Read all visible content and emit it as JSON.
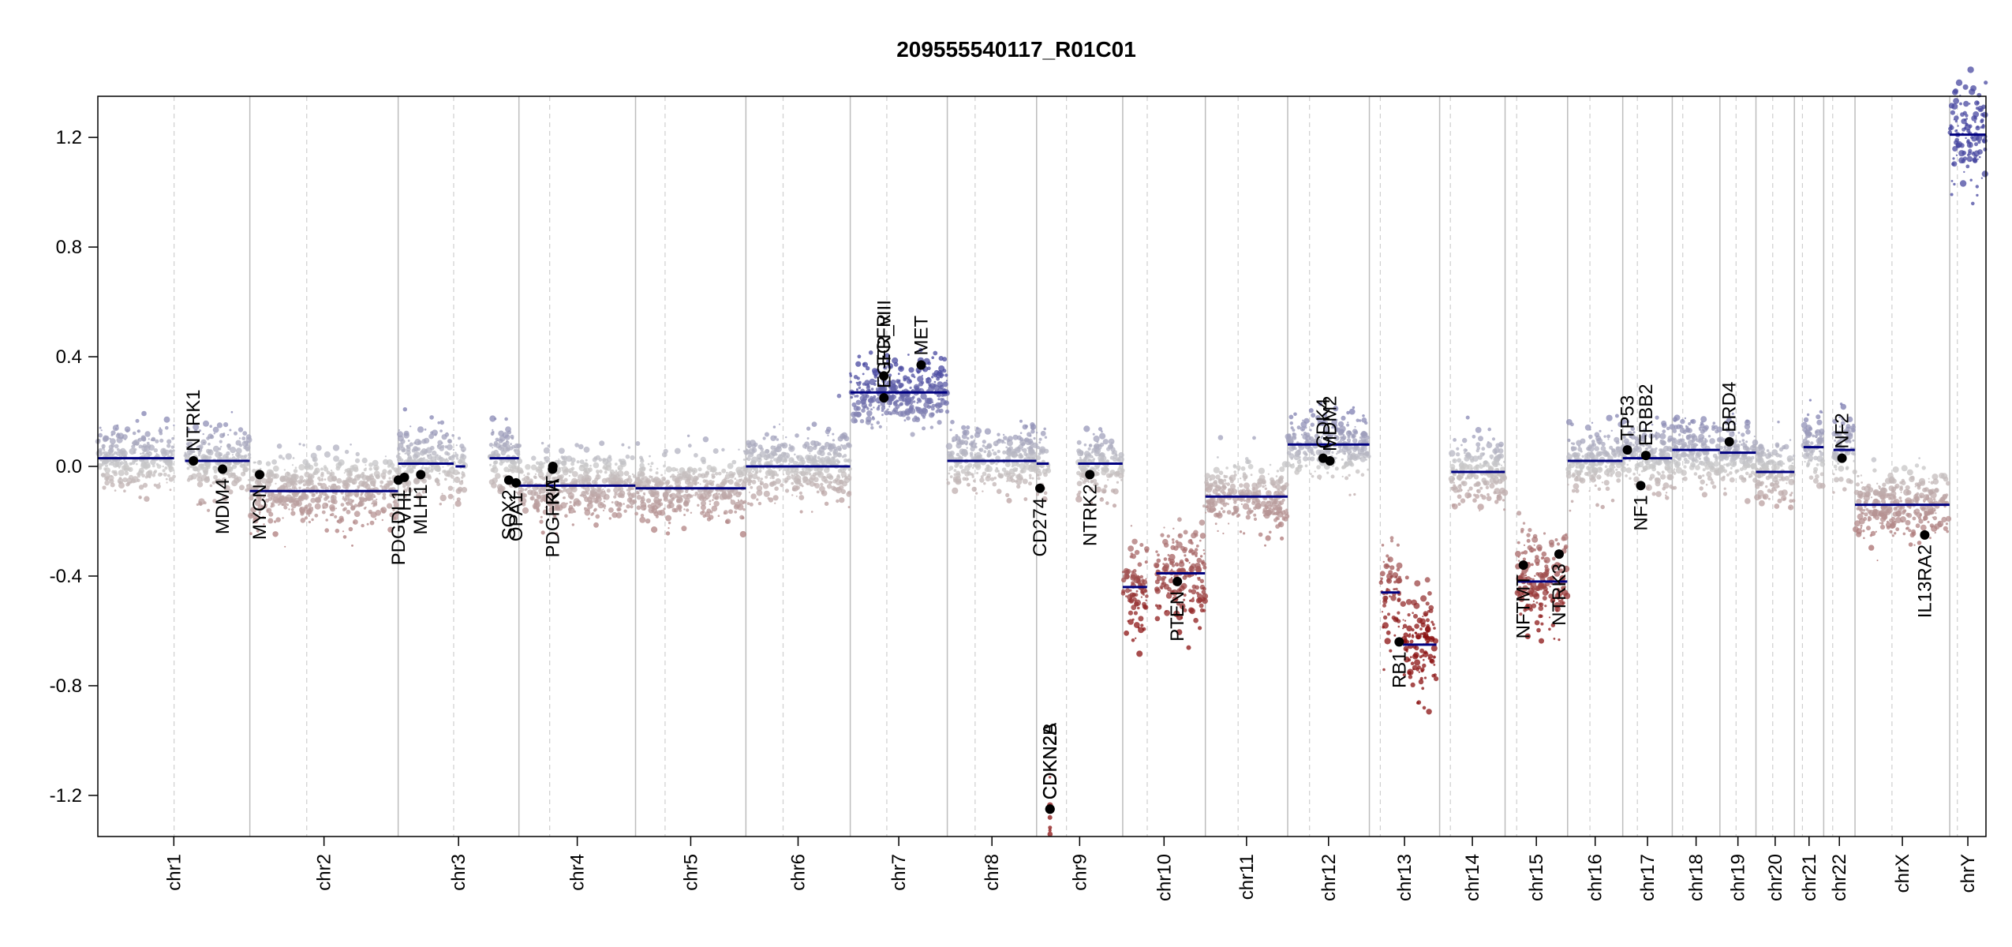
{
  "colors": {
    "gain": "#4848a0",
    "neutral": "#c8c8c8",
    "loss": "#8a1010",
    "segment": "#000080",
    "gene_point": "#000000",
    "chrom_boundary": "#bdbdbd",
    "centromere": "#cfcfcf"
  },
  "chart_data": {
    "type": "scatter",
    "title": "209555540117_R01C01",
    "xlabel": "",
    "ylabel": "",
    "ylim": [
      -1.35,
      1.35
    ],
    "y_ticks": [
      {
        "value": 1.2,
        "label": "1.2"
      },
      {
        "value": 0.8,
        "label": "0.8"
      },
      {
        "value": 0.4,
        "label": "0.4"
      },
      {
        "value": 0.0,
        "label": "0.0"
      },
      {
        "value": -0.4,
        "label": "-0.4"
      },
      {
        "value": -0.8,
        "label": "-0.8"
      },
      {
        "value": -1.2,
        "label": "-1.2"
      }
    ],
    "grid": false,
    "chromosomes": [
      {
        "name": "chr1",
        "len": 249.2,
        "cen": 125.0
      },
      {
        "name": "chr2",
        "len": 243.2,
        "cen": 93.3
      },
      {
        "name": "chr3",
        "len": 198.0,
        "cen": 91.0
      },
      {
        "name": "chr4",
        "len": 191.2,
        "cen": 50.4
      },
      {
        "name": "chr5",
        "len": 180.9,
        "cen": 48.4
      },
      {
        "name": "chr6",
        "len": 171.1,
        "cen": 61.0
      },
      {
        "name": "chr7",
        "len": 159.1,
        "cen": 59.9
      },
      {
        "name": "chr8",
        "len": 146.4,
        "cen": 45.6
      },
      {
        "name": "chr9",
        "len": 141.2,
        "cen": 49.0
      },
      {
        "name": "chr10",
        "len": 135.5,
        "cen": 40.2
      },
      {
        "name": "chr11",
        "len": 135.0,
        "cen": 53.7
      },
      {
        "name": "chr12",
        "len": 133.9,
        "cen": 35.8
      },
      {
        "name": "chr13",
        "len": 115.2,
        "cen": 17.9
      },
      {
        "name": "chr14",
        "len": 107.3,
        "cen": 17.6
      },
      {
        "name": "chr15",
        "len": 102.5,
        "cen": 19.0
      },
      {
        "name": "chr16",
        "len": 90.4,
        "cen": 36.6
      },
      {
        "name": "chr17",
        "len": 81.2,
        "cen": 24.0
      },
      {
        "name": "chr18",
        "len": 78.1,
        "cen": 17.2
      },
      {
        "name": "chr19",
        "len": 59.1,
        "cen": 26.5
      },
      {
        "name": "chr20",
        "len": 63.0,
        "cen": 27.5
      },
      {
        "name": "chr21",
        "len": 48.1,
        "cen": 13.2
      },
      {
        "name": "chr22",
        "len": 51.3,
        "cen": 14.7
      },
      {
        "name": "chrX",
        "len": 155.3,
        "cen": 60.6
      },
      {
        "name": "chrY",
        "len": 59.4,
        "cen": 12.5
      }
    ],
    "segments": [
      {
        "chr": "chr1",
        "start": 0,
        "end": 125,
        "value": 0.03
      },
      {
        "chr": "chr1",
        "start": 143,
        "end": 249,
        "value": 0.02
      },
      {
        "chr": "chr2",
        "start": 0,
        "end": 243,
        "value": -0.09
      },
      {
        "chr": "chr3",
        "start": 0,
        "end": 91,
        "value": 0.01
      },
      {
        "chr": "chr3",
        "start": 94,
        "end": 110,
        "value": 0.0
      },
      {
        "chr": "chr3",
        "start": 150,
        "end": 198,
        "value": 0.03
      },
      {
        "chr": "chr4",
        "start": 0,
        "end": 191,
        "value": -0.07
      },
      {
        "chr": "chr5",
        "start": 0,
        "end": 181,
        "value": -0.08
      },
      {
        "chr": "chr6",
        "start": 0,
        "end": 171,
        "value": 0.0
      },
      {
        "chr": "chr7",
        "start": 0,
        "end": 159,
        "value": 0.27
      },
      {
        "chr": "chr8",
        "start": 0,
        "end": 146,
        "value": 0.02
      },
      {
        "chr": "chr9",
        "start": 0,
        "end": 20,
        "value": 0.01
      },
      {
        "chr": "chr9",
        "start": 21.9,
        "end": 22.1,
        "value": -1.25
      },
      {
        "chr": "chr9",
        "start": 68,
        "end": 141,
        "value": 0.01
      },
      {
        "chr": "chr10",
        "start": 0,
        "end": 40,
        "value": -0.44
      },
      {
        "chr": "chr10",
        "start": 55,
        "end": 135,
        "value": -0.39
      },
      {
        "chr": "chr11",
        "start": 0,
        "end": 135,
        "value": -0.11
      },
      {
        "chr": "chr12",
        "start": 0,
        "end": 134,
        "value": 0.08
      },
      {
        "chr": "chr13",
        "start": 19,
        "end": 50,
        "value": -0.46
      },
      {
        "chr": "chr13",
        "start": 55,
        "end": 110,
        "value": -0.65
      },
      {
        "chr": "chr14",
        "start": 19,
        "end": 107,
        "value": -0.02
      },
      {
        "chr": "chr15",
        "start": 20,
        "end": 102,
        "value": -0.42
      },
      {
        "chr": "chr16",
        "start": 0,
        "end": 90,
        "value": 0.02
      },
      {
        "chr": "chr17",
        "start": 0,
        "end": 81,
        "value": 0.03
      },
      {
        "chr": "chr18",
        "start": 0,
        "end": 78,
        "value": 0.06
      },
      {
        "chr": "chr19",
        "start": 0,
        "end": 59,
        "value": 0.05
      },
      {
        "chr": "chr20",
        "start": 0,
        "end": 63,
        "value": -0.02
      },
      {
        "chr": "chr21",
        "start": 15,
        "end": 48,
        "value": 0.07
      },
      {
        "chr": "chr22",
        "start": 16,
        "end": 51,
        "value": 0.06
      },
      {
        "chr": "chrX",
        "start": 0,
        "end": 155,
        "value": -0.14
      },
      {
        "chr": "chrY",
        "start": 0,
        "end": 59,
        "value": 1.21
      }
    ],
    "genes": [
      {
        "name": "NTRK1",
        "chr": "chr1",
        "pos": 156.8,
        "value": 0.02,
        "side": "above"
      },
      {
        "name": "MDM4",
        "chr": "chr1",
        "pos": 204.5,
        "value": -0.01,
        "side": "below"
      },
      {
        "name": "MYCN",
        "chr": "chr2",
        "pos": 16.0,
        "value": -0.03,
        "side": "below"
      },
      {
        "name": "PDGDL1",
        "chr": "chr3",
        "pos": 0.3,
        "value": -0.05,
        "side": "below"
      },
      {
        "name": "VHL",
        "chr": "chr3",
        "pos": 10.2,
        "value": -0.04,
        "side": "below"
      },
      {
        "name": "MLH1",
        "chr": "chr3",
        "pos": 37.0,
        "value": -0.03,
        "side": "below"
      },
      {
        "name": "SOX2",
        "chr": "chr3",
        "pos": 181.4,
        "value": -0.05,
        "side": "below"
      },
      {
        "name": "OPA1",
        "chr": "chr3",
        "pos": 193.3,
        "value": -0.06,
        "side": "below"
      },
      {
        "name": "PDGFRA",
        "chr": "chr4",
        "pos": 55.1,
        "value": -0.01,
        "side": "below"
      },
      {
        "name": "KIT",
        "chr": "chr4",
        "pos": 55.6,
        "value": 0.0,
        "side": "below"
      },
      {
        "name": "EGFR",
        "chr": "chr7",
        "pos": 55.1,
        "value": 0.33,
        "side": "above"
      },
      {
        "name": "EGFR_vIII",
        "chr": "chr7",
        "pos": 55.2,
        "value": 0.25,
        "side": "above"
      },
      {
        "name": "MET",
        "chr": "chr7",
        "pos": 116.3,
        "value": 0.37,
        "side": "above"
      },
      {
        "name": "CD274",
        "chr": "chr9",
        "pos": 5.5,
        "value": -0.08,
        "side": "below"
      },
      {
        "name": "CDKN2A",
        "chr": "chr9",
        "pos": 21.9,
        "value": -1.25,
        "side": "above"
      },
      {
        "name": "CDKN2B",
        "chr": "chr9",
        "pos": 22.0,
        "value": -1.25,
        "side": "above"
      },
      {
        "name": "NTRK2",
        "chr": "chr9",
        "pos": 87.3,
        "value": -0.03,
        "side": "below"
      },
      {
        "name": "PTEN",
        "chr": "chr10",
        "pos": 89.6,
        "value": -0.42,
        "side": "below"
      },
      {
        "name": "CDK4",
        "chr": "chr12",
        "pos": 58.1,
        "value": 0.03,
        "side": "above"
      },
      {
        "name": "MDM2",
        "chr": "chr12",
        "pos": 69.2,
        "value": 0.02,
        "side": "above"
      },
      {
        "name": "RB1",
        "chr": "chr13",
        "pos": 48.9,
        "value": -0.64,
        "side": "below"
      },
      {
        "name": "NFTMT",
        "chr": "chr15",
        "pos": 30.0,
        "value": -0.36,
        "side": "below"
      },
      {
        "name": "NTRK3",
        "chr": "chr15",
        "pos": 88.5,
        "value": -0.32,
        "side": "below"
      },
      {
        "name": "TP53",
        "chr": "chr17",
        "pos": 7.6,
        "value": 0.06,
        "side": "above"
      },
      {
        "name": "NF1",
        "chr": "chr17",
        "pos": 29.5,
        "value": -0.07,
        "side": "below"
      },
      {
        "name": "ERBB2",
        "chr": "chr17",
        "pos": 37.9,
        "value": 0.04,
        "side": "above"
      },
      {
        "name": "BRD4",
        "chr": "chr19",
        "pos": 15.4,
        "value": 0.09,
        "side": "above"
      },
      {
        "name": "NF2",
        "chr": "chr22",
        "pos": 30.0,
        "value": 0.03,
        "side": "above"
      },
      {
        "name": "IL13RA2",
        "chr": "chrX",
        "pos": 114.3,
        "value": -0.25,
        "side": "below"
      }
    ]
  }
}
